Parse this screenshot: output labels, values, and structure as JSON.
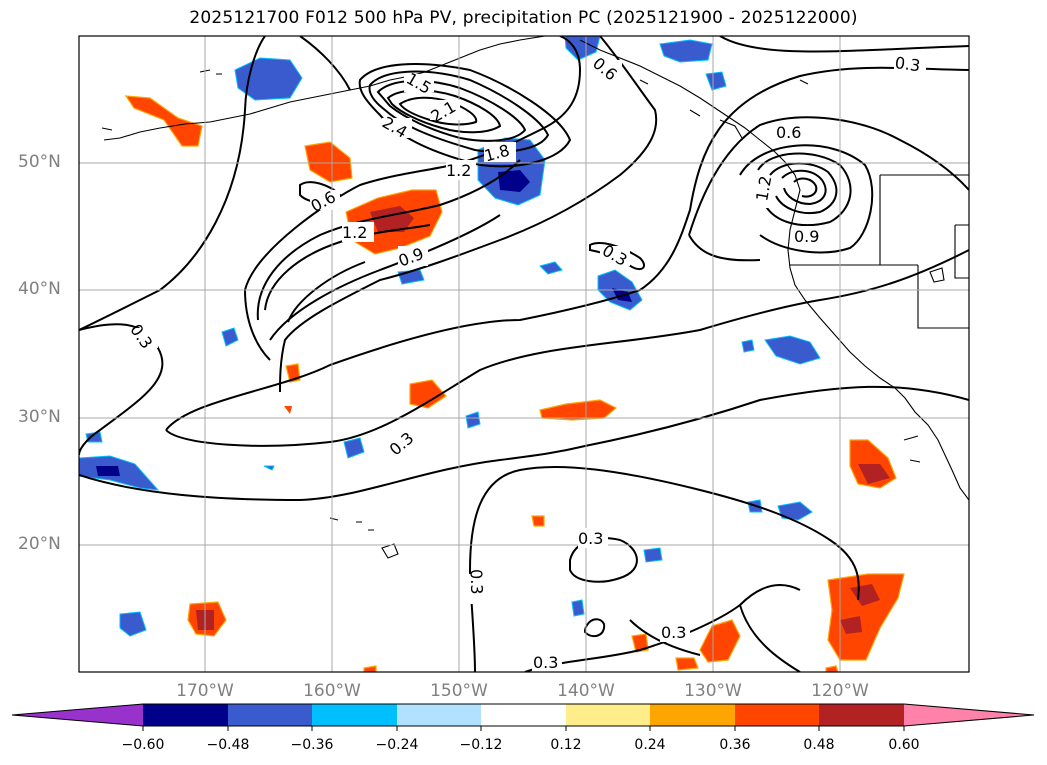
{
  "title": "2025121700 F012 500 hPa PV, precipitation PC (2025121900 - 2025122000)",
  "lat_labels": [
    "50°N",
    "40°N",
    "30°N",
    "20°N"
  ],
  "lon_labels": [
    "170°W",
    "160°W",
    "150°W",
    "140°W",
    "130°W",
    "120°W"
  ],
  "contour_labels": [
    "0.3",
    "0.3",
    "0.3",
    "0.3",
    "0.3",
    "0.3",
    "0.3",
    "0.3",
    "0.6",
    "0.6",
    "0.6",
    "0.9",
    "0.9",
    "1.2",
    "1.2",
    "1.2",
    "1.5",
    "1.8",
    "2.1",
    "2.4"
  ],
  "colorbar": {
    "ticks": [
      "−0.60",
      "−0.48",
      "−0.36",
      "−0.24",
      "−0.12",
      "0.12",
      "0.24",
      "0.36",
      "0.48",
      "0.60"
    ],
    "colors": [
      "#9932cc",
      "#00008b",
      "#3a5bcd",
      "#00bfff",
      "#b0e2ff",
      "#ffffff",
      "#ffec8b",
      "#ffa500",
      "#ff4500",
      "#b22222",
      "#ff82ab"
    ]
  }
}
